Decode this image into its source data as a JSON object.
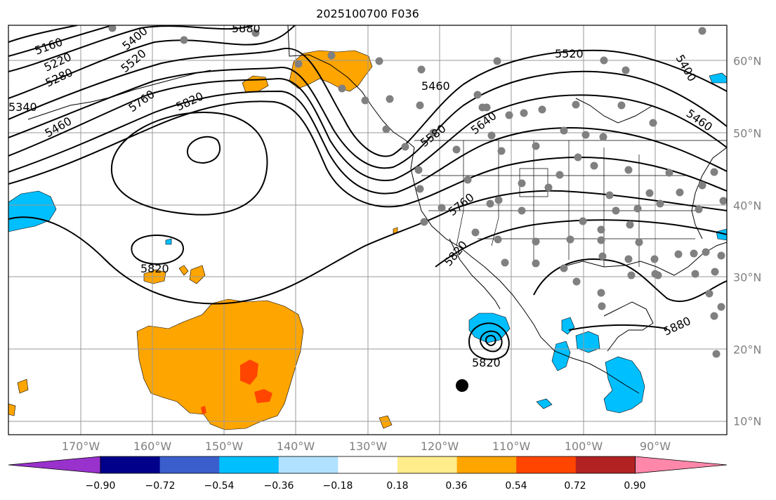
{
  "title": "2025100700 F036",
  "longitude_labels": [
    "170°W",
    "160°W",
    "150°W",
    "140°W",
    "130°W",
    "120°W",
    "110°W",
    "100°W",
    "90°W"
  ],
  "latitude_labels": [
    "60°N",
    "50°N",
    "40°N",
    "30°N",
    "20°N",
    "10°N"
  ],
  "contour_labels": [
    "5160",
    "5220",
    "5280",
    "5400",
    "5520",
    "5340",
    "5460",
    "5760",
    "5820",
    "5880",
    "5580",
    "5640",
    "5400",
    "5460",
    "5520",
    "5760",
    "5820",
    "5880"
  ],
  "colorbar": {
    "tick_labels": [
      "−0.90",
      "−0.72",
      "−0.54",
      "−0.36",
      "−0.18",
      "0.18",
      "0.36",
      "0.54",
      "0.72",
      "0.90"
    ],
    "colors": [
      "#9932cc",
      "#00008b",
      "#3a5fcd",
      "#00bfff",
      "#b0e2ff",
      "#ffffff",
      "#ffec8b",
      "#ffa500",
      "#ff4500",
      "#b22222",
      "#ff88aa"
    ]
  },
  "colors": {
    "positive_fill": "#ffa500",
    "strong_fill": "#ff4500",
    "negative_fill": "#00bfff",
    "stations": "#808080",
    "contours": "#000000"
  }
}
